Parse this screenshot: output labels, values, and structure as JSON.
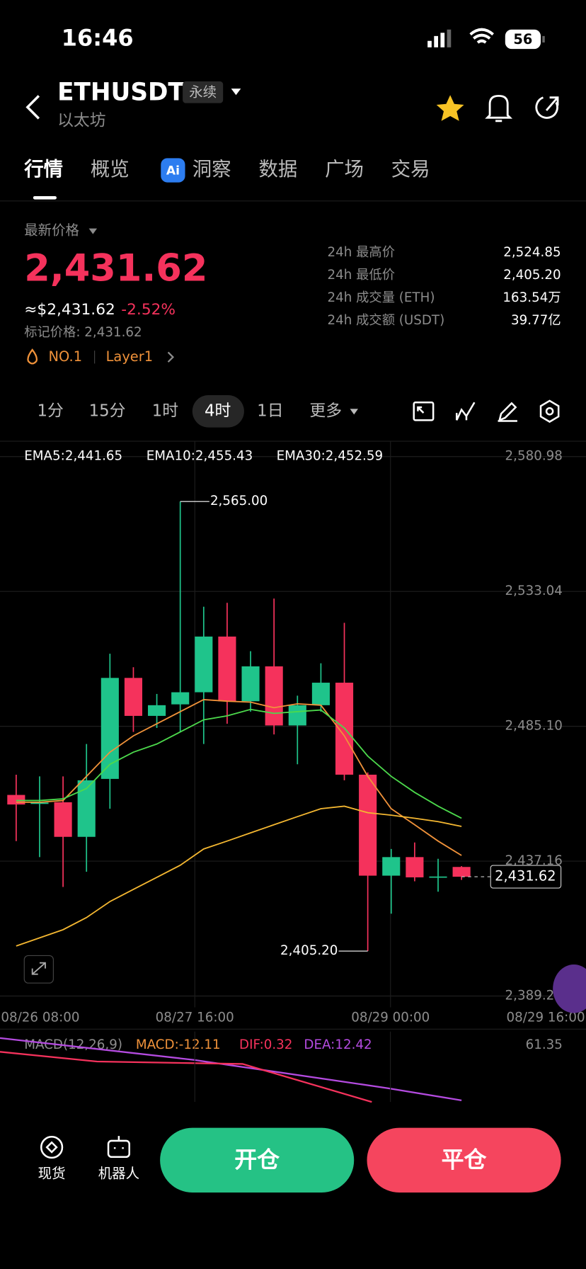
{
  "status_bar": {
    "time": "16:46",
    "battery": "56"
  },
  "header": {
    "symbol": "ETHUSDT",
    "tag": "永续",
    "name": "以太坊"
  },
  "tabs": [
    "行情",
    "概览",
    "洞察",
    "数据",
    "广场",
    "交易"
  ],
  "price": {
    "label": "最新价格",
    "last": "2,431.62",
    "usd": "≈$2,431.62",
    "change": "-2.52%",
    "mark": "标记价格: 2,431.62",
    "rank": "NO.1",
    "sector": "Layer1"
  },
  "stats": [
    {
      "label": "24h 最高价",
      "value": "2,524.85"
    },
    {
      "label": "24h 最低价",
      "value": "2,405.20"
    },
    {
      "label": "24h 成交量 (ETH)",
      "value": "163.54万"
    },
    {
      "label": "24h 成交额 (USDT)",
      "value": "39.77亿"
    }
  ],
  "periods": [
    "1分",
    "15分",
    "1时",
    "4时",
    "1日",
    "更多"
  ],
  "chart_data": {
    "type": "candlestick",
    "open": [
      2460.7,
      2457.5,
      2458.1,
      2445.8,
      2466.4,
      2502.3,
      2488.8,
      2492.9,
      2497.2,
      2517.0,
      2494.0,
      2506.4,
      2485.4,
      2492.6,
      2500.6,
      2467.9,
      2432.0,
      2438.6,
      2431.4,
      2435.1
    ],
    "high": [
      2467.9,
      2467.3,
      2467.3,
      2478.8,
      2510.9,
      2506.1,
      2496.6,
      2565.0,
      2527.6,
      2529.0,
      2511.8,
      2530.5,
      2496.0,
      2507.5,
      2521.9,
      2468.7,
      2441.5,
      2443.8,
      2438.0,
      2435.4
    ],
    "low": [
      2444.3,
      2438.6,
      2428.0,
      2433.4,
      2455.8,
      2483.1,
      2484.5,
      2483.1,
      2478.8,
      2486.0,
      2490.3,
      2482.2,
      2471.6,
      2490.3,
      2465.9,
      2405.2,
      2418.5,
      2430.0,
      2426.3,
      2430.5
    ],
    "close": [
      2457.3,
      2458.0,
      2445.8,
      2465.9,
      2502.3,
      2488.8,
      2492.6,
      2497.2,
      2517.0,
      2494.0,
      2506.4,
      2485.4,
      2492.6,
      2500.6,
      2467.9,
      2432.0,
      2438.6,
      2431.4,
      2431.7,
      2431.62
    ],
    "up_color": "#1fc48b",
    "down_color": "#f5325c",
    "series": [
      {
        "name": "EMA5:2,441.65",
        "color": "#f0923a",
        "values": [
          2458.1,
          2458.1,
          2458.7,
          2467.3,
          2475.9,
          2481.7,
          2486.0,
          2490.3,
          2494.6,
          2494.0,
          2493.7,
          2491.7,
          2493.1,
          2492.6,
          2481.7,
          2467.3,
          2455.8,
          2450.1,
          2444.3,
          2439.2
        ]
      },
      {
        "name": "EMA10:2,455.43",
        "color": "#4cd94c",
        "values": [
          2458.7,
          2458.7,
          2459.3,
          2463.0,
          2471.6,
          2475.9,
          2478.8,
          2483.1,
          2487.4,
          2488.8,
          2491.1,
          2489.7,
          2490.3,
          2490.9,
          2484.5,
          2474.5,
          2467.3,
          2461.6,
          2456.7,
          2452.4
        ]
      },
      {
        "name": "EMA30:2,452.59",
        "color": "#f4b731",
        "values": [
          2407.0,
          2409.9,
          2412.8,
          2417.1,
          2422.8,
          2427.1,
          2431.4,
          2435.7,
          2441.5,
          2444.3,
          2447.2,
          2450.1,
          2453.0,
          2455.8,
          2456.7,
          2454.4,
          2453.5,
          2452.4,
          2451.2,
          2449.5
        ]
      }
    ],
    "ylim": [
      2389.22,
      2580.98
    ],
    "yticks": [
      {
        "value": 2389.22,
        "label": "2,389.22"
      },
      {
        "value": 2437.16,
        "label": "2,437.16"
      },
      {
        "value": 2485.1,
        "label": "2,485.10"
      },
      {
        "value": 2533.04,
        "label": "2,533.04"
      },
      {
        "value": 2580.98,
        "label": "2,580.98"
      }
    ],
    "xlim": [
      -0.69,
      24.31
    ],
    "xticks": [
      {
        "value": 1.03,
        "label": "08/26 08:00"
      },
      {
        "value": 7.62,
        "label": "08/27 16:00"
      },
      {
        "value": 15.97,
        "label": "08/29 00:00"
      },
      {
        "value": 22.59,
        "label": "08/29 16:00"
      }
    ],
    "grid": true,
    "annotations": [
      {
        "value": 2565.0,
        "label": "2,565.00"
      },
      {
        "value": 2405.2,
        "label": "2,405.20"
      }
    ],
    "last_price": {
      "value": 2431.62,
      "label": "2,431.62"
    }
  },
  "indicator": {
    "name": "MACD(12,26,9)",
    "macd": "MACD:-12.11",
    "dif": "DIF:0.32",
    "dea": "DEA:12.42",
    "scale_top": "61.35"
  },
  "bottom_bar": {
    "spot": "现货",
    "bot": "机器人",
    "open": "开仓",
    "close": "平仓"
  }
}
